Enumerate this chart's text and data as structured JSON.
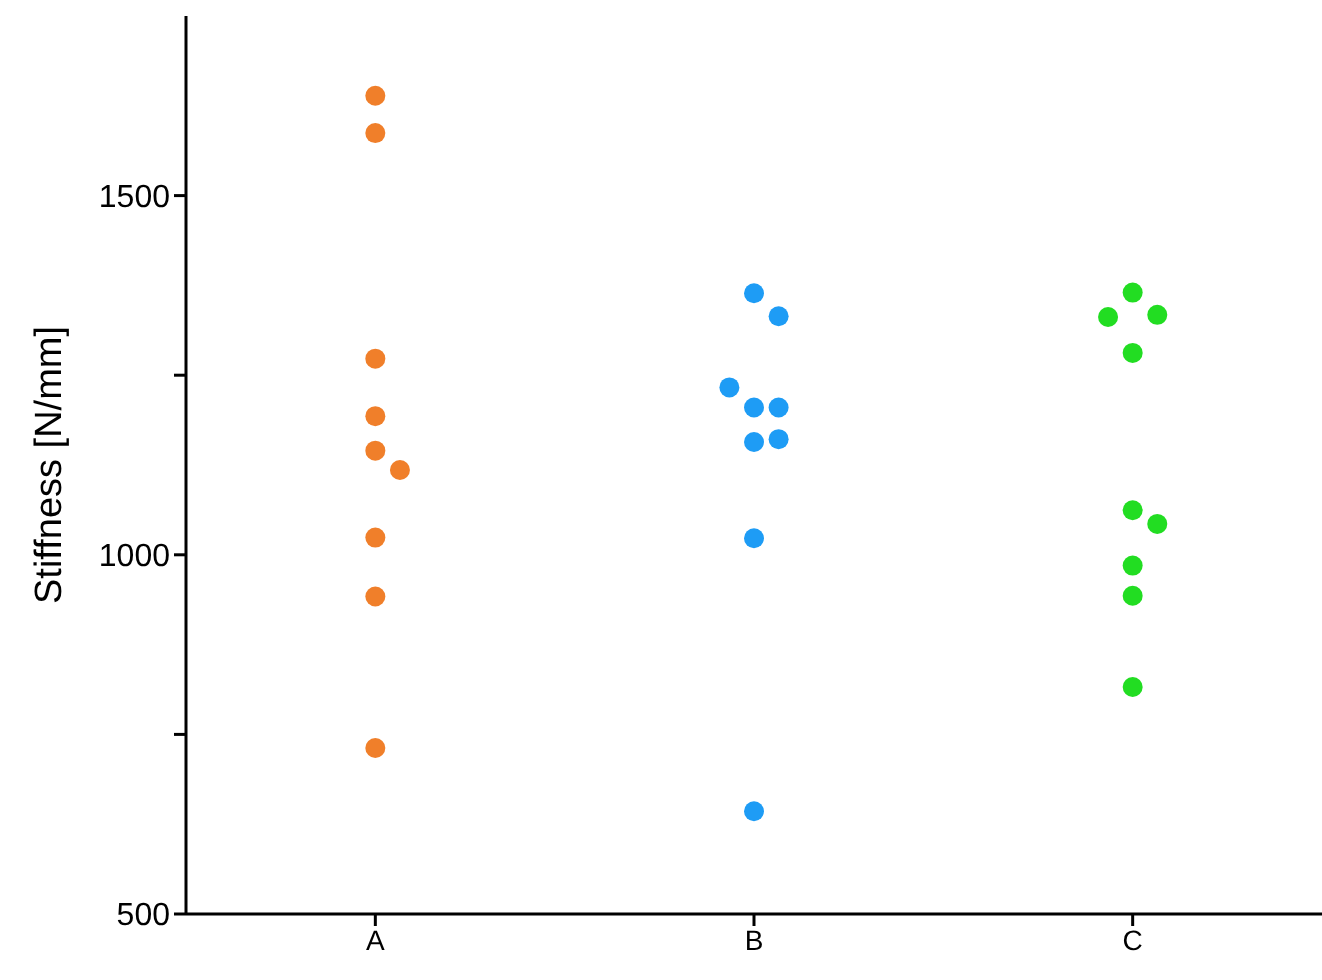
{
  "chart_data": {
    "type": "scatter",
    "ylabel": "Stiffness [N/mm]",
    "categories": [
      "A",
      "B",
      "C"
    ],
    "ylim": [
      500,
      1750
    ],
    "yticks": [
      500,
      {
        "value": 750,
        "label": null
      },
      1000,
      {
        "value": 1250,
        "label": null
      },
      1500
    ],
    "grid": false,
    "legend": false,
    "marker": "circle",
    "series": [
      {
        "color": "#f07f2a",
        "x": [
          "A",
          "A",
          "A",
          "A",
          "A",
          "A",
          "A",
          "A",
          "A"
        ],
        "values": [
          1639,
          1587,
          1273,
          1193,
          1145,
          1118,
          1024,
          942,
          731
        ]
      },
      {
        "color": "#1e9cf5",
        "x": [
          "B",
          "B",
          "B",
          "B",
          "B",
          "B",
          "B",
          "B",
          "B"
        ],
        "values": [
          1364,
          1332,
          1205,
          1205,
          1233,
          1157,
          1161,
          1023,
          643
        ]
      },
      {
        "color": "#22dd22",
        "x": [
          "C",
          "C",
          "C",
          "C",
          "C",
          "C",
          "C",
          "C",
          "C"
        ],
        "values": [
          1365,
          1334,
          1331,
          1281,
          1062,
          1043,
          985,
          943,
          816
        ]
      }
    ]
  }
}
